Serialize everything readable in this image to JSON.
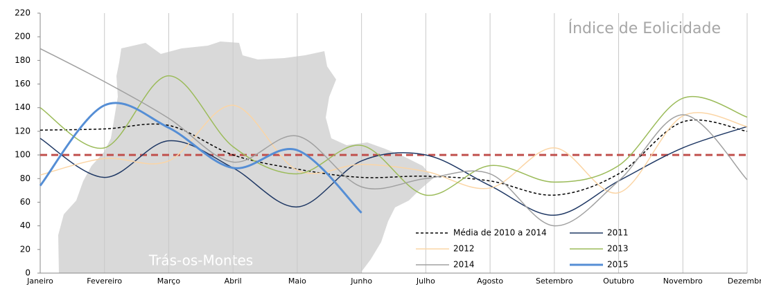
{
  "chart_data": {
    "type": "line",
    "title": "Índice de Eolicidade",
    "annotation": "Trás-os-Montes",
    "categories": [
      "Janeiro",
      "Fevereiro",
      "Março",
      "Abril",
      "Maio",
      "Junho",
      "Julho",
      "Agosto",
      "Setembro",
      "Outubro",
      "Novembro",
      "Dezembro"
    ],
    "ylim": [
      0,
      220
    ],
    "yticks": [
      0,
      20,
      40,
      60,
      80,
      100,
      120,
      140,
      160,
      180,
      200,
      220
    ],
    "reference_value": 100,
    "reference_color": "#c0504d",
    "series": [
      {
        "name": "Média de 2010 a 2014",
        "color": "#000000",
        "dashed": true,
        "values": [
          121,
          122,
          125,
          100,
          88,
          81,
          82,
          78,
          66,
          84,
          128,
          120
        ]
      },
      {
        "name": "2011",
        "color": "#1f3864",
        "values": [
          114,
          81,
          112,
          89,
          56,
          95,
          100,
          74,
          49,
          78,
          106,
          124
        ]
      },
      {
        "name": "2012",
        "color": "#fbd5a5",
        "values": [
          83,
          97,
          95,
          142,
          87,
          92,
          86,
          72,
          106,
          68,
          133,
          124
        ]
      },
      {
        "name": "2013",
        "color": "#9bbb59",
        "values": [
          140,
          106,
          167,
          107,
          84,
          108,
          66,
          91,
          77,
          91,
          148,
          132
        ]
      },
      {
        "name": "2014",
        "color": "#a0a0a0",
        "values": [
          190,
          162,
          131,
          94,
          116,
          73,
          80,
          84,
          40,
          78,
          134,
          79
        ]
      },
      {
        "name": "2015",
        "color": "#558ed5",
        "width": 3,
        "values": [
          74,
          142,
          123,
          89,
          104,
          51,
          null,
          null,
          null,
          null,
          null,
          null
        ]
      }
    ]
  }
}
